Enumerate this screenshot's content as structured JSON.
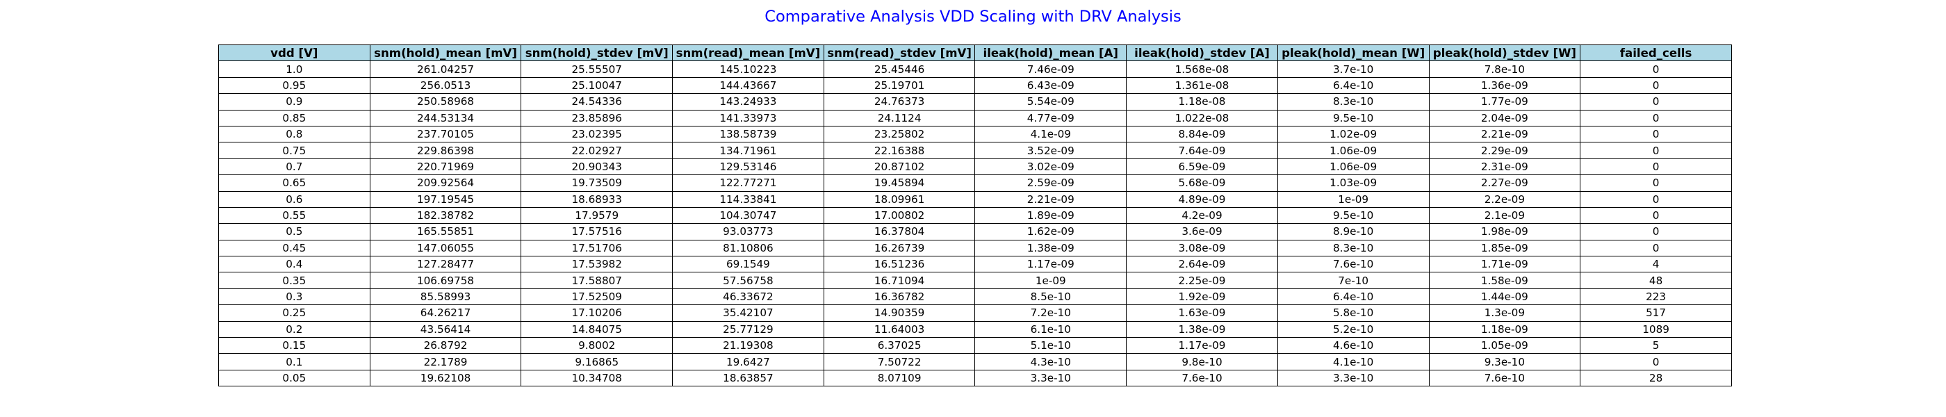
{
  "chart_data": {
    "type": "table",
    "title": "Comparative Analysis VDD Scaling with DRV Analysis",
    "title_color": "#0000ff",
    "header_color": "#add8e6",
    "columns": [
      "vdd [V]",
      "snm(hold)_mean [mV]",
      "snm(hold)_stdev [mV]",
      "snm(read)_mean [mV]",
      "snm(read)_stdev [mV]",
      "ileak(hold)_mean [A]",
      "ileak(hold)_stdev [A]",
      "pleak(hold)_mean [W]",
      "pleak(hold)_stdev [W]",
      "failed_cells"
    ],
    "rows": [
      [
        "1.0",
        "261.04257",
        "25.55507",
        "145.10223",
        "25.45446",
        "7.46e-09",
        "1.568e-08",
        "3.7e-10",
        "7.8e-10",
        "0"
      ],
      [
        "0.95",
        "256.0513",
        "25.10047",
        "144.43667",
        "25.19701",
        "6.43e-09",
        "1.361e-08",
        "6.4e-10",
        "1.36e-09",
        "0"
      ],
      [
        "0.9",
        "250.58968",
        "24.54336",
        "143.24933",
        "24.76373",
        "5.54e-09",
        "1.18e-08",
        "8.3e-10",
        "1.77e-09",
        "0"
      ],
      [
        "0.85",
        "244.53134",
        "23.85896",
        "141.33973",
        "24.1124",
        "4.77e-09",
        "1.022e-08",
        "9.5e-10",
        "2.04e-09",
        "0"
      ],
      [
        "0.8",
        "237.70105",
        "23.02395",
        "138.58739",
        "23.25802",
        "4.1e-09",
        "8.84e-09",
        "1.02e-09",
        "2.21e-09",
        "0"
      ],
      [
        "0.75",
        "229.86398",
        "22.02927",
        "134.71961",
        "22.16388",
        "3.52e-09",
        "7.64e-09",
        "1.06e-09",
        "2.29e-09",
        "0"
      ],
      [
        "0.7",
        "220.71969",
        "20.90343",
        "129.53146",
        "20.87102",
        "3.02e-09",
        "6.59e-09",
        "1.06e-09",
        "2.31e-09",
        "0"
      ],
      [
        "0.65",
        "209.92564",
        "19.73509",
        "122.77271",
        "19.45894",
        "2.59e-09",
        "5.68e-09",
        "1.03e-09",
        "2.27e-09",
        "0"
      ],
      [
        "0.6",
        "197.19545",
        "18.68933",
        "114.33841",
        "18.09961",
        "2.21e-09",
        "4.89e-09",
        "1e-09",
        "2.2e-09",
        "0"
      ],
      [
        "0.55",
        "182.38782",
        "17.9579",
        "104.30747",
        "17.00802",
        "1.89e-09",
        "4.2e-09",
        "9.5e-10",
        "2.1e-09",
        "0"
      ],
      [
        "0.5",
        "165.55851",
        "17.57516",
        "93.03773",
        "16.37804",
        "1.62e-09",
        "3.6e-09",
        "8.9e-10",
        "1.98e-09",
        "0"
      ],
      [
        "0.45",
        "147.06055",
        "17.51706",
        "81.10806",
        "16.26739",
        "1.38e-09",
        "3.08e-09",
        "8.3e-10",
        "1.85e-09",
        "0"
      ],
      [
        "0.4",
        "127.28477",
        "17.53982",
        "69.1549",
        "16.51236",
        "1.17e-09",
        "2.64e-09",
        "7.6e-10",
        "1.71e-09",
        "4"
      ],
      [
        "0.35",
        "106.69758",
        "17.58807",
        "57.56758",
        "16.71094",
        "1e-09",
        "2.25e-09",
        "7e-10",
        "1.58e-09",
        "48"
      ],
      [
        "0.3",
        "85.58993",
        "17.52509",
        "46.33672",
        "16.36782",
        "8.5e-10",
        "1.92e-09",
        "6.4e-10",
        "1.44e-09",
        "223"
      ],
      [
        "0.25",
        "64.26217",
        "17.10206",
        "35.42107",
        "14.90359",
        "7.2e-10",
        "1.63e-09",
        "5.8e-10",
        "1.3e-09",
        "517"
      ],
      [
        "0.2",
        "43.56414",
        "14.84075",
        "25.77129",
        "11.64003",
        "6.1e-10",
        "1.38e-09",
        "5.2e-10",
        "1.18e-09",
        "1089"
      ],
      [
        "0.15",
        "26.8792",
        "9.8002",
        "21.19308",
        "6.37025",
        "5.1e-10",
        "1.17e-09",
        "4.6e-10",
        "1.05e-09",
        "5"
      ],
      [
        "0.1",
        "22.1789",
        "9.16865",
        "19.6427",
        "7.50722",
        "4.3e-10",
        "9.8e-10",
        "4.1e-10",
        "9.3e-10",
        "0"
      ],
      [
        "0.05",
        "19.62108",
        "10.34708",
        "18.63857",
        "8.07109",
        "3.3e-10",
        "7.6e-10",
        "3.3e-10",
        "7.6e-10",
        "28"
      ]
    ]
  }
}
